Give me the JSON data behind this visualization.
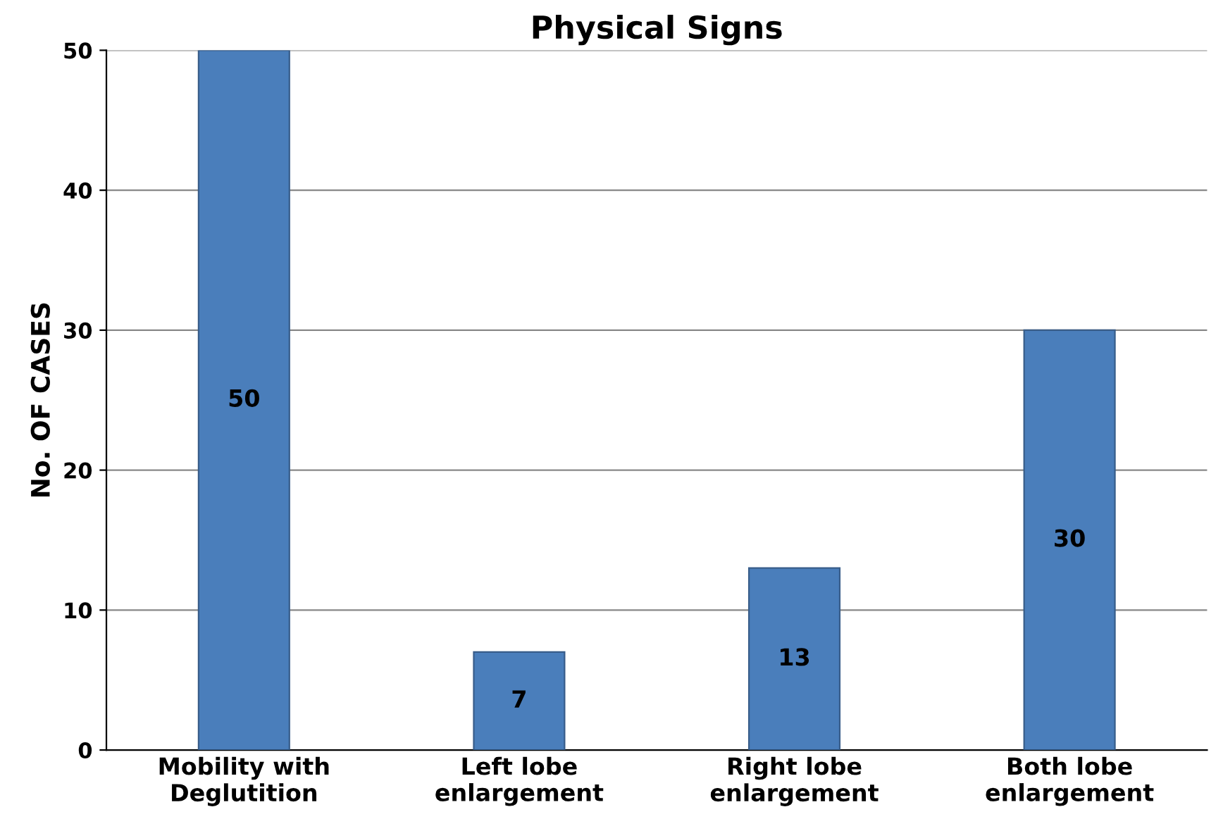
{
  "chart_data": {
    "type": "bar",
    "title": "Physical Signs",
    "ylabel": "No. OF CASES",
    "categories": [
      "Mobility with\nDeglutition",
      "Left lobe\nenlargement",
      "Right lobe\nenlargement",
      "Both lobe\nenlargement"
    ],
    "values": [
      50,
      7,
      13,
      30
    ],
    "color": "#4a7ebb",
    "ylim": [
      0,
      50
    ],
    "yticks": [
      0,
      10,
      20,
      30,
      40,
      50
    ],
    "grid": "y",
    "data_labels": true
  }
}
